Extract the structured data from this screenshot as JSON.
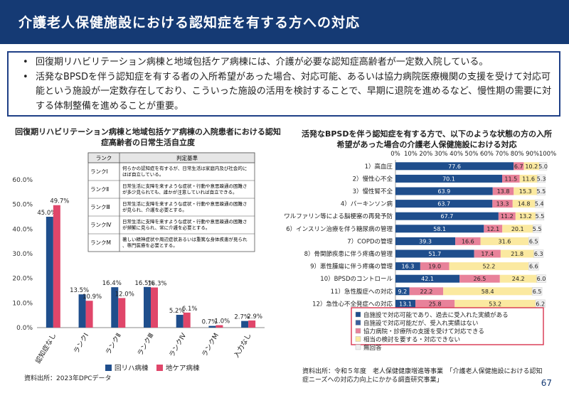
{
  "header": {
    "title": "介護老人保健施設における認知症を有する方への対応"
  },
  "summary": {
    "bullets": [
      "回復期リハビリテーション病棟と地域包括ケア病棟には、介護が必要な認知症高齢者が一定数入院している。",
      "活発なBPSDを伴う認知症を有する者の入所希望があった場合、対応可能、あるいは協力病院医療機関の支援を受けて対応可能という施設が一定数存在しており、こういった施設の活用を検討することで、早期に退院を進めるなど、慢性期の需要に対する体制整備を進めることが重要。"
    ]
  },
  "left_chart": {
    "title": "回復期リハビリテーション病棟と地域包括ケア病棟の入院患者における認知症高齢者の日常生活自立度",
    "source": "資料出所：2023年DPCデータ"
  },
  "rank_table": {
    "header": [
      "ランク",
      "判定基準"
    ],
    "rows": [
      {
        "rank": "ランクⅠ",
        "desc": "何らかの認知症を有するが、日常生活は家庭内及び社会的にほぼ自立している。"
      },
      {
        "rank": "ランクⅡ",
        "desc": "日常生活に支障を来すような症状・行動や意思疎通の困難さが多少見られても、誰かが注意していれば自立できる。"
      },
      {
        "rank": "ランクⅢ",
        "desc": "日常生活に支障を来すような症状・行動や意思疎通の困難さが見られ、介護を必要とする。"
      },
      {
        "rank": "ランクⅣ",
        "desc": "日常生活に支障を来すような症状・行動や意思疎通の困難さが頻繁に見られ、常に介護を必要とする。"
      },
      {
        "rank": "ランクM",
        "desc": "著しい精神症状や周辺症状あるいは重篤な身体疾患が見られ、専門医療を必要とする。"
      }
    ]
  },
  "right_chart": {
    "title": "活発なBPSDを伴う認知症を有する方で、以下のような状態の方の入所希望があった場合の介護老人保健施設における対応",
    "source": "資料出所：令和５年度　老人保健健康増進等事業　「介護老人保健施設における認知症ニーズへの対応力向上にかかる調査研究事業」"
  },
  "page": {
    "number": "67"
  },
  "chart_data": [
    {
      "type": "bar",
      "categories": [
        "認知症なし",
        "ランクⅠ",
        "ランクⅡ",
        "ランクⅢ",
        "ランクⅣ",
        "ランクM",
        "入力なし"
      ],
      "series": [
        {
          "name": "回リハ病棟",
          "color": "#1f4e8c",
          "values": [
            45.0,
            13.5,
            16.4,
            16.5,
            5.2,
            0.7,
            2.7
          ]
        },
        {
          "name": "地ケア病棟",
          "color": "#e0466a",
          "values": [
            49.7,
            10.9,
            12.0,
            16.3,
            6.1,
            1.0,
            2.9
          ]
        }
      ],
      "value_labels": [
        [
          "45.0%",
          "13.5%",
          "16.4%",
          "16.5%",
          "5.2%",
          "0.7%",
          "2.7%"
        ],
        [
          "49.7%",
          "10.9%",
          "12.0%",
          "16.3%",
          "6.1%",
          "1.0%",
          "2.9%"
        ]
      ],
      "ylim": [
        0,
        60
      ],
      "yticks": [
        "0.0%",
        "10.0%",
        "20.0%",
        "30.0%",
        "40.0%",
        "50.0%",
        "60.0%"
      ],
      "grid": false,
      "legend": "bottom"
    },
    {
      "type": "bar",
      "orientation": "horizontal",
      "stacked": true,
      "xlim": [
        0,
        100
      ],
      "xticks": [
        "0%",
        "10%",
        "20%",
        "30%",
        "40%",
        "50%",
        "60%",
        "70%",
        "80%",
        "90%",
        "100%"
      ],
      "categories": [
        "1）高血圧",
        "2）慢性心不全",
        "3）慢性腎不全",
        "4）パーキンソン病",
        "5）ワルファリン等による脳梗塞の再発予防",
        "6）インスリン治療を伴う糖尿病の管理",
        "7）COPDの管理",
        "8）骨関節疾患に伴う疼痛の管理",
        "9）悪性腫瘍に伴う疼痛の管理",
        "10）BPSDのコントロール",
        "11）急性腹症への対応",
        "12）急性心不全発症への対応"
      ],
      "series": [
        {
          "name": "自施設で対応可能であり、過去に受入れた実績がある",
          "color": "#1f4e8c",
          "values": [
            77.6,
            70.1,
            63.9,
            63.7,
            67.7,
            58.1,
            39.3,
            51.7,
            16.3,
            42.1,
            9.2,
            13.1
          ]
        },
        {
          "name": "自施設で対応可能だが、受入れ実績はない",
          "color": "#3a5f9c",
          "values": [
            0,
            0,
            0,
            0,
            0,
            0,
            0,
            0,
            0,
            0,
            0,
            0
          ]
        },
        {
          "name": "協力病院・診療所の支援を受けて対応できる",
          "color": "#e8829a",
          "values": [
            6.7,
            11.5,
            13.8,
            13.3,
            11.2,
            12.1,
            16.6,
            17.4,
            19.0,
            26.5,
            22.2,
            25.8
          ]
        },
        {
          "name": "相当の検討を要する・対応できない",
          "color": "#fbe9a0",
          "values": [
            10.2,
            11.6,
            15.3,
            14.8,
            13.2,
            20.1,
            31.6,
            21.8,
            52.2,
            24.2,
            58.4,
            53.2
          ]
        },
        {
          "name": "無回答",
          "color": "#efefef",
          "values": [
            5.0,
            5.3,
            5.5,
            5.4,
            5.5,
            5.5,
            6.5,
            6.3,
            6.6,
            6.0,
            6.5,
            6.2
          ]
        }
      ],
      "labels": [
        [
          "77.6",
          "",
          "6.7",
          "10.2",
          "5.0"
        ],
        [
          "70.1",
          "",
          "11.5",
          "11.6",
          "5.3"
        ],
        [
          "63.9",
          "",
          "13.8",
          "15.3",
          "5.5"
        ],
        [
          "63.7",
          "",
          "13.3",
          "14.8",
          "5.4"
        ],
        [
          "67.7",
          "",
          "11.2",
          "13.2",
          "5.5"
        ],
        [
          "58.1",
          "",
          "12.1",
          "20.1",
          "5.5"
        ],
        [
          "39.3",
          "",
          "16.6",
          "31.6",
          "6.5"
        ],
        [
          "51.7",
          "",
          "17.4",
          "21.8",
          "6.3"
        ],
        [
          "16.3",
          "",
          "19.0",
          "52.2",
          "6.6"
        ],
        [
          "42.1",
          "",
          "26.5",
          "24.2",
          "6.0"
        ],
        [
          "9.2",
          "",
          "22.2",
          "58.4",
          "6.5"
        ],
        [
          "13.1",
          "",
          "25.8",
          "53.2",
          "6.2"
        ]
      ],
      "legend": "bottom"
    }
  ]
}
